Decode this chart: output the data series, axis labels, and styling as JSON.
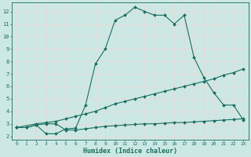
{
  "xlabel": "Humidex (Indice chaleur)",
  "bg_color": "#cce8e4",
  "line_color": "#1a6e60",
  "grid_color": "#e8d8d8",
  "xlim": [
    -0.5,
    23.5
  ],
  "ylim": [
    1.7,
    12.7
  ],
  "xticks": [
    0,
    1,
    2,
    3,
    4,
    5,
    6,
    7,
    8,
    9,
    10,
    11,
    12,
    13,
    14,
    15,
    16,
    17,
    18,
    19,
    20,
    21,
    22,
    23
  ],
  "yticks": [
    2,
    3,
    4,
    5,
    6,
    7,
    8,
    9,
    10,
    11,
    12
  ],
  "line1_x": [
    0,
    1,
    2,
    3,
    4,
    5,
    6,
    7,
    8,
    9,
    10,
    11,
    12,
    13,
    14,
    15,
    16,
    17,
    18,
    19,
    20,
    21,
    22,
    23
  ],
  "line1_y": [
    2.7,
    2.7,
    2.9,
    2.2,
    2.2,
    2.6,
    2.65,
    4.5,
    7.8,
    9.0,
    11.3,
    11.7,
    12.35,
    12.0,
    11.7,
    11.7,
    11.0,
    11.7,
    8.3,
    6.7,
    5.5,
    4.5,
    4.5,
    3.3
  ],
  "line2_x": [
    0,
    2,
    3,
    4,
    5,
    6,
    7,
    8,
    9,
    10,
    11,
    12,
    13,
    14,
    15,
    16,
    17,
    18,
    19,
    20,
    21,
    22,
    23
  ],
  "line2_y": [
    2.7,
    3.0,
    3.1,
    3.2,
    3.4,
    3.6,
    3.8,
    4.0,
    4.3,
    4.6,
    4.8,
    5.0,
    5.2,
    5.4,
    5.6,
    5.8,
    6.0,
    6.2,
    6.4,
    6.6,
    6.9,
    7.1,
    7.4
  ],
  "line3_x": [
    0,
    1,
    2,
    3,
    4,
    5,
    6,
    7,
    8,
    9,
    10,
    11,
    12,
    13,
    14,
    15,
    16,
    17,
    18,
    19,
    20,
    21,
    22,
    23
  ],
  "line3_y": [
    2.7,
    2.7,
    2.9,
    3.0,
    3.0,
    2.5,
    2.5,
    2.6,
    2.7,
    2.8,
    2.85,
    2.9,
    2.95,
    3.0,
    3.0,
    3.05,
    3.1,
    3.1,
    3.15,
    3.2,
    3.25,
    3.3,
    3.35,
    3.4
  ]
}
